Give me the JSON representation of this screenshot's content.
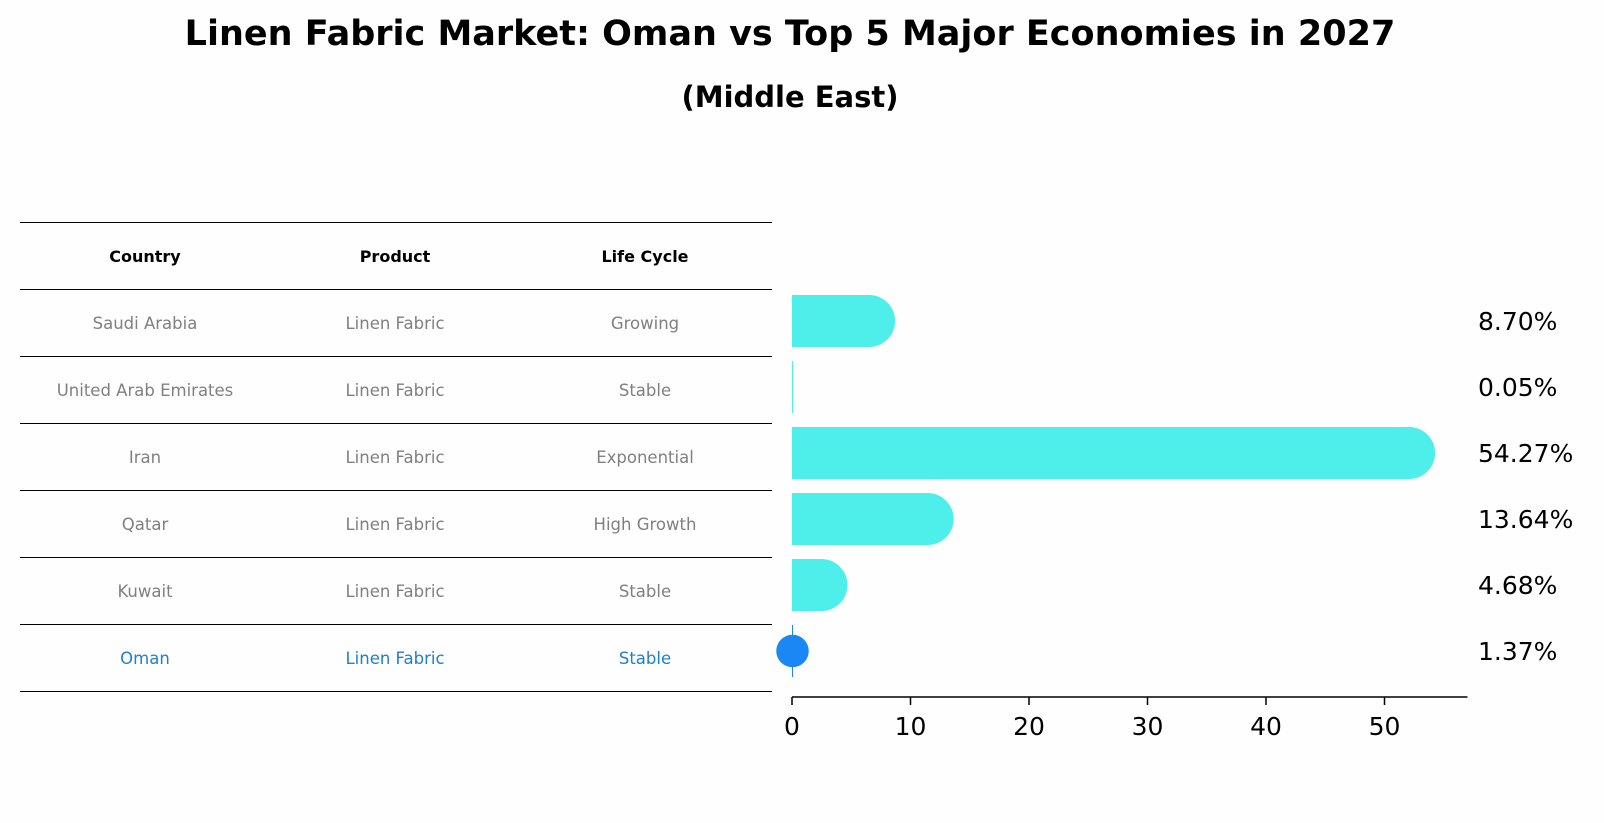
{
  "title": "Linen Fabric Market: Oman vs Top 5 Major Economies in 2027",
  "subtitle": "(Middle East)",
  "table": {
    "headers": [
      "Country",
      "Product",
      "Life Cycle"
    ],
    "rows": [
      [
        "Saudi Arabia",
        "Linen Fabric",
        "Growing"
      ],
      [
        "United Arab Emirates",
        "Linen Fabric",
        "Stable"
      ],
      [
        "Iran",
        "Linen Fabric",
        "Exponential"
      ],
      [
        "Qatar",
        "Linen Fabric",
        "High Growth"
      ],
      [
        "Kuwait",
        "Linen Fabric",
        "Stable"
      ],
      [
        "Oman",
        "Linen Fabric",
        "Stable"
      ]
    ]
  },
  "chart_data": {
    "type": "bar",
    "orientation": "horizontal",
    "categories": [
      "Saudi Arabia",
      "United Arab Emirates",
      "Iran",
      "Qatar",
      "Kuwait",
      "Oman"
    ],
    "values": [
      8.7,
      0.05,
      54.27,
      13.64,
      4.68,
      1.37
    ],
    "value_labels": [
      "8.70%",
      "0.05%",
      "54.27%",
      "13.64%",
      "4.68%",
      "1.37%"
    ],
    "highlight": "Oman",
    "xticks": [
      0,
      10,
      20,
      30,
      40,
      50
    ],
    "xlim": [
      0,
      57
    ],
    "colors": {
      "bar": "#4eeeea",
      "highlight": "#1a87f5"
    }
  }
}
